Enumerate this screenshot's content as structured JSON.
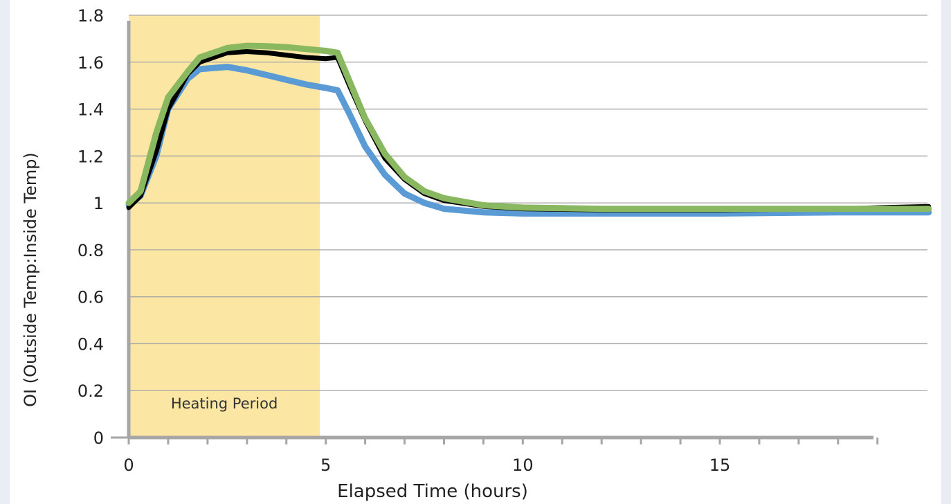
{
  "chart_data": {
    "type": "line",
    "title": "",
    "xlabel": "Elapsed Time (hours)",
    "ylabel": "OI (Outside Temp:Inside Temp)",
    "xlim": [
      0,
      20
    ],
    "ylim": [
      0,
      1.8
    ],
    "x_ticks": [
      0,
      5,
      10,
      15
    ],
    "x_tick_labels": [
      "0",
      "5",
      "10",
      "15"
    ],
    "y_ticks": [
      0,
      0.2,
      0.4,
      0.6,
      0.8,
      1,
      1.2,
      1.4,
      1.6,
      1.8
    ],
    "y_tick_labels": [
      "0",
      "0.2",
      "0.4",
      "0.6",
      "0.8",
      "1",
      "1.2",
      "1.4",
      "1.6",
      "1.8"
    ],
    "grid": true,
    "legend": "none",
    "annotations": [
      {
        "label": "Heating Period",
        "x_start": 0,
        "x_end": 4.85,
        "color": "#fbe7a3"
      }
    ],
    "series": [
      {
        "color": "#5b9bd5",
        "x": [
          0,
          0.3,
          0.7,
          1,
          1.5,
          1.8,
          2.5,
          3,
          3.5,
          4,
          4.5,
          5,
          5.3,
          5.6,
          6,
          6.5,
          7,
          7.5,
          8,
          9,
          10,
          12,
          15,
          18,
          20.3
        ],
        "y": [
          0.99,
          1.03,
          1.2,
          1.4,
          1.53,
          1.57,
          1.58,
          1.565,
          1.545,
          1.525,
          1.505,
          1.49,
          1.48,
          1.38,
          1.24,
          1.12,
          1.04,
          1.0,
          0.975,
          0.96,
          0.955,
          0.955,
          0.955,
          0.96,
          0.96
        ]
      },
      {
        "color": "#000000",
        "x": [
          0,
          0.3,
          0.7,
          1,
          1.5,
          1.8,
          2.5,
          3,
          3.5,
          4,
          4.5,
          5,
          5.3,
          5.6,
          6,
          6.5,
          7,
          7.5,
          8,
          9,
          10,
          12,
          15,
          18,
          20.3
        ],
        "y": [
          0.98,
          1.03,
          1.22,
          1.4,
          1.55,
          1.6,
          1.64,
          1.645,
          1.64,
          1.63,
          1.62,
          1.615,
          1.62,
          1.5,
          1.35,
          1.19,
          1.1,
          1.04,
          1.01,
          0.985,
          0.975,
          0.97,
          0.97,
          0.975,
          0.985
        ]
      },
      {
        "color": "#8ab861",
        "x": [
          0,
          0.3,
          0.7,
          1,
          1.5,
          1.8,
          2.5,
          3,
          3.5,
          4,
          4.5,
          5,
          5.3,
          5.6,
          6,
          6.5,
          7,
          7.5,
          8,
          9,
          10,
          12,
          15,
          18,
          20.3
        ],
        "y": [
          1.0,
          1.05,
          1.3,
          1.45,
          1.56,
          1.62,
          1.66,
          1.67,
          1.668,
          1.664,
          1.656,
          1.648,
          1.64,
          1.52,
          1.36,
          1.21,
          1.11,
          1.05,
          1.02,
          0.99,
          0.98,
          0.975,
          0.975,
          0.975,
          0.975
        ]
      }
    ]
  }
}
